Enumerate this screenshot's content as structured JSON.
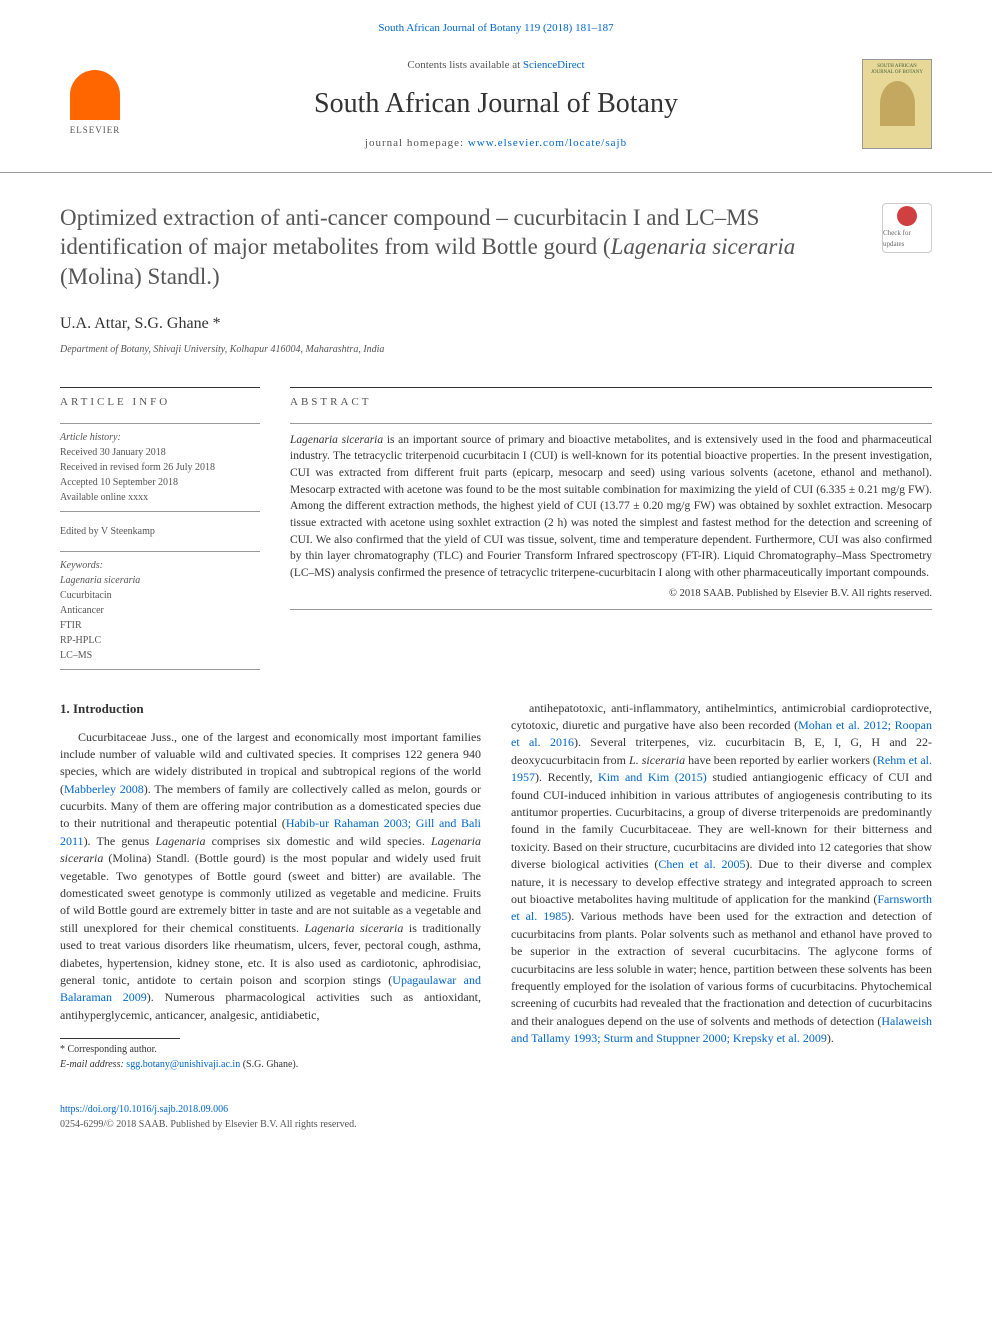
{
  "header": {
    "citation_text": "South African Journal of Botany 119 (2018) 181–187",
    "contents_text": "Contents lists available at ",
    "contents_link": "ScienceDirect",
    "journal_title": "South African Journal of Botany",
    "homepage_label": "journal homepage: ",
    "homepage_url": "www.elsevier.com/locate/sajb",
    "elsevier_label": "ELSEVIER",
    "cover_title": "SOUTH AFRICAN JOURNAL OF BOTANY"
  },
  "article": {
    "title_pre": "Optimized extraction of anti-cancer compound – cucurbitacin I and LC–MS identification of major metabolites from wild Bottle gourd (",
    "title_species": "Lagenaria siceraria",
    "title_post": " (Molina) Standl.)",
    "check_badge": "Check for updates",
    "authors": "U.A. Attar, S.G. Ghane *",
    "affiliation": "Department of Botany, Shivaji University, Kolhapur 416004, Maharashtra, India"
  },
  "info": {
    "heading": "article info",
    "history_label": "Article history:",
    "received": "Received 30 January 2018",
    "revised": "Received in revised form 26 July 2018",
    "accepted": "Accepted 10 September 2018",
    "available": "Available online xxxx",
    "edited_by": "Edited by V Steenkamp",
    "keywords_label": "Keywords:",
    "kw1": "Lagenaria siceraria",
    "kw2": "Cucurbitacin",
    "kw3": "Anticancer",
    "kw4": "FTIR",
    "kw5": "RP-HPLC",
    "kw6": "LC–MS"
  },
  "abstract": {
    "heading": "abstract",
    "p1a": "Lagenaria siceraria",
    "p1b": " is an important source of primary and bioactive metabolites, and is extensively used in the food and pharmaceutical industry. The tetracyclic triterpenoid cucurbitacin I (CUI) is well-known for its potential bioactive properties. In the present investigation, CUI was extracted from different fruit parts (epicarp, mesocarp and seed) using various solvents (acetone, ethanol and methanol). Mesocarp extracted with acetone was found to be the most suitable combination for maximizing the yield of CUI (6.335 ± 0.21 mg/g FW). Among the different extraction methods, the highest yield of CUI (13.77 ± 0.20 mg/g FW) was obtained by soxhlet extraction. Mesocarp tissue extracted with acetone using soxhlet extraction (2 h) was noted the simplest and fastest method for the detection and screening of CUI. We also confirmed that the yield of CUI was tissue, solvent, time and temperature dependent. Furthermore, CUI was also confirmed by thin layer chromatography (TLC) and Fourier Transform Infrared spectroscopy (FT-IR). Liquid Chromatography–Mass Spectrometry (LC–MS) analysis confirmed the presence of tetracyclic triterpene-cucurbitacin I along with other pharmaceutically important compounds.",
    "copyright": "© 2018 SAAB. Published by Elsevier B.V. All rights reserved."
  },
  "body": {
    "intro_heading": "1. Introduction",
    "col1_p1a": "Cucurbitaceae Juss., one of the largest and economically most important families include number of valuable wild and cultivated species. It comprises 122 genera 940 species, which are widely distributed in tropical and subtropical regions of the world (",
    "col1_ref1": "Mabberley 2008",
    "col1_p1b": "). The members of family are collectively called as melon, gourds or cucurbits. Many of them are offering major contribution as a domesticated species due to their nutritional and therapeutic potential (",
    "col1_ref2": "Habib-ur Rahaman 2003; Gill and Bali 2011",
    "col1_p1c": "). The genus ",
    "col1_em1": "Lagenaria",
    "col1_p1d": " comprises six domestic and wild species. ",
    "col1_em2": "Lagenaria siceraria",
    "col1_p1e": " (Molina) Standl. (Bottle gourd) is the most popular and widely used fruit vegetable. Two genotypes of Bottle gourd (sweet and bitter) are available. The domesticated sweet genotype is commonly utilized as vegetable and medicine. Fruits of wild Bottle gourd are extremely bitter in taste and are not suitable as a vegetable and still unexplored for their chemical constituents. ",
    "col1_em3": "Lagenaria siceraria",
    "col1_p1f": " is traditionally used to treat various disorders like rheumatism, ulcers, fever, pectoral cough, asthma, diabetes, hypertension, kidney stone, etc. It is also used as cardiotonic, aphrodisiac, general tonic, antidote to certain poison and scorpion stings (",
    "col1_ref3": "Upagaulawar and Balaraman 2009",
    "col1_p1g": "). Numerous pharmacological activities such as antioxidant, antihyperglycemic, anticancer, analgesic, antidiabetic, ",
    "col2_p1a": "antihepatotoxic, anti-inflammatory, antihelmintics, antimicrobial cardioprotective, cytotoxic, diuretic and purgative have also been recorded (",
    "col2_ref1": "Mohan et al. 2012; Roopan et al. 2016",
    "col2_p1b": "). Several triterpenes, viz. cucurbitacin B, E, I, G, H and 22-deoxycucurbitacin from ",
    "col2_em1": "L. siceraria",
    "col2_p1c": " have been reported by earlier workers (",
    "col2_ref2": "Rehm et al. 1957",
    "col2_p1d": "). Recently, ",
    "col2_ref3": "Kim and Kim (2015)",
    "col2_p1e": " studied antiangiogenic efficacy of CUI and found CUI-induced inhibition in various attributes of angiogenesis contributing to its antitumor properties. Cucurbitacins, a group of diverse triterpenoids are predominantly found in the family Cucurbitaceae. They are well-known for their bitterness and toxicity. Based on their structure, cucurbitacins are divided into 12 categories that show diverse biological activities (",
    "col2_ref4": "Chen et al. 2005",
    "col2_p1f": "). Due to their diverse and complex nature, it is necessary to develop effective strategy and integrated approach to screen out bioactive metabolites having multitude of application for the mankind (",
    "col2_ref5": "Farnsworth et al. 1985",
    "col2_p1g": "). Various methods have been used for the extraction and detection of cucurbitacins from plants. Polar solvents such as methanol and ethanol have proved to be superior in the extraction of several cucurbitacins. The aglycone forms of cucurbitacins are less soluble in water; hence, partition between these solvents has been frequently employed for the isolation of various forms of cucurbitacins. Phytochemical screening of cucurbits had revealed that the fractionation and detection of cucurbitacins and their analogues depend on the use of solvents and methods of detection (",
    "col2_ref6": "Halaweish and Tallamy 1993; Sturm and Stuppner 2000; Krepsky et al. 2009",
    "col2_p1h": ")."
  },
  "footnote": {
    "corr_label": "* Corresponding author.",
    "email_label": "E-mail address: ",
    "email": "sgg.botany@unishivaji.ac.in",
    "email_who": " (S.G. Ghane)."
  },
  "footer": {
    "doi": "https://doi.org/10.1016/j.sajb.2018.09.006",
    "issn_copyright": "0254-6299/© 2018 SAAB. Published by Elsevier B.V. All rights reserved."
  },
  "colors": {
    "link": "#0066cc",
    "text": "#333333",
    "muted": "#555555",
    "elsevier_orange": "#ff6600",
    "cover_bg": "#e8d898",
    "cover_green": "#3a5f3a"
  }
}
